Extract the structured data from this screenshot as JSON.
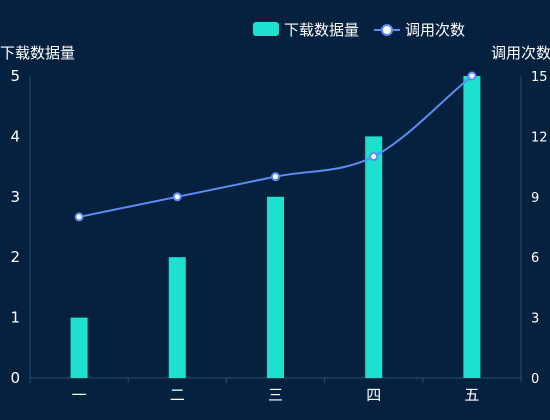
{
  "chart_data": {
    "type": "bar",
    "categories": [
      "一",
      "二",
      "三",
      "四",
      "五"
    ],
    "series": [
      {
        "name": "下载数据量",
        "type": "bar",
        "axis": "left",
        "values": [
          1,
          2,
          3,
          4,
          5
        ]
      },
      {
        "name": "调用次数",
        "type": "line",
        "axis": "right",
        "smooth": true,
        "values": [
          8,
          9,
          10,
          11,
          15
        ]
      }
    ],
    "yaxis_left": {
      "label": "下载数据量",
      "range": [
        0,
        5
      ],
      "ticks": [
        0,
        1,
        2,
        3,
        4,
        5
      ]
    },
    "yaxis_right": {
      "label": "调用次数",
      "range": [
        0,
        15
      ],
      "ticks": [
        0,
        3,
        6,
        9,
        12,
        15
      ]
    },
    "grid": false,
    "legend": "top-right"
  },
  "colors": {
    "background": "#06213f",
    "bar": "#1de0cf",
    "line": "#5b8df5",
    "marker_fill": "#ffffff",
    "axis": "#2a4a6e",
    "text": "#ffffff"
  }
}
